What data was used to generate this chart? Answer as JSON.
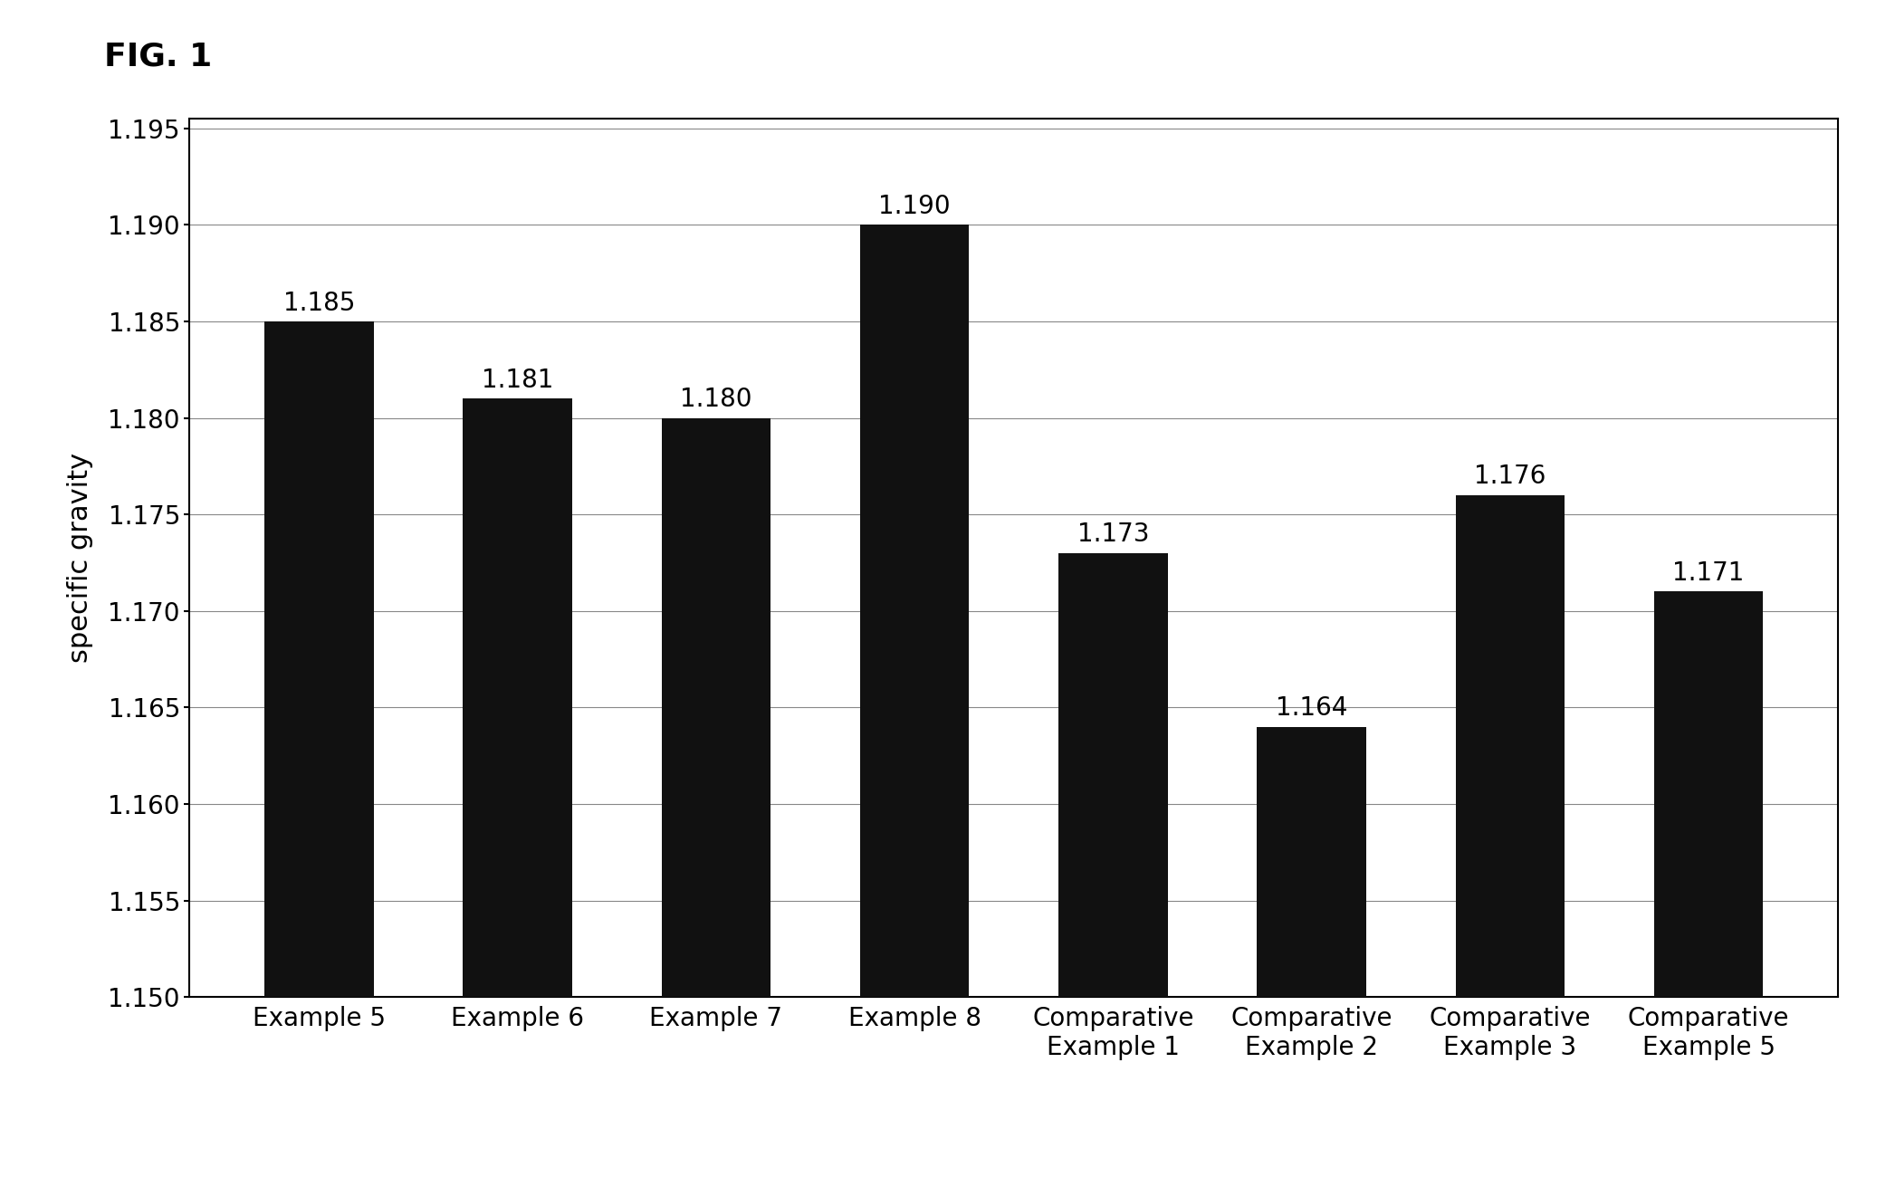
{
  "categories": [
    "Example 5",
    "Example 6",
    "Example 7",
    "Example 8",
    "Comparative\nExample 1",
    "Comparative\nExample 2",
    "Comparative\nExample 3",
    "Comparative\nExample 5"
  ],
  "values": [
    1.185,
    1.181,
    1.18,
    1.19,
    1.173,
    1.164,
    1.176,
    1.171
  ],
  "bar_color": "#111111",
  "ylabel": "specific gravity",
  "ylim_min": 1.15,
  "ylim_max": 1.195,
  "ytick_step": 0.005,
  "fig_title": "FIG. 1",
  "background_color": "#ffffff",
  "bar_width": 0.55,
  "title_fontsize": 26,
  "label_fontsize": 22,
  "tick_fontsize": 20,
  "value_fontsize": 20
}
